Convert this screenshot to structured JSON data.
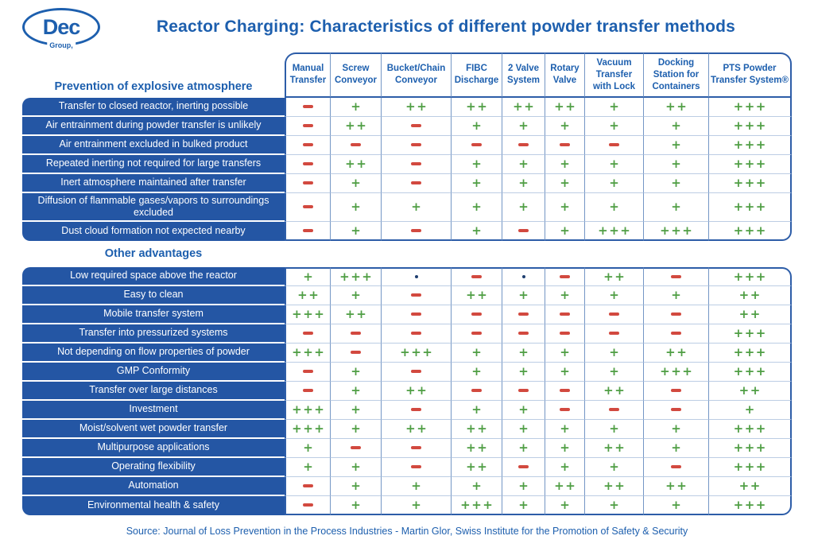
{
  "header": {
    "logo_text": "Dec",
    "logo_subtext": "Group,",
    "title": "Reactor Charging: Characteristics of different powder transfer methods"
  },
  "chart_data": {
    "type": "table",
    "title": "Reactor Charging: Characteristics of different powder transfer methods",
    "rating_scale": [
      "-",
      ".",
      "+",
      "++",
      "+++"
    ],
    "columns": [
      "Manual Transfer",
      "Screw Conveyor",
      "Bucket/Chain Conveyor",
      "FIBC Discharge",
      "2 Valve System",
      "Rotary Valve",
      "Vacuum Transfer with Lock",
      "Docking Station for Containers",
      "PTS Powder Transfer System®"
    ],
    "sections": [
      {
        "name": "Prevention of explosive atmosphere",
        "rows": [
          {
            "label": "Transfer to closed reactor, inerting possible",
            "values": [
              "-",
              "+",
              "++",
              "++",
              "++",
              "++",
              "+",
              "++",
              "+++"
            ]
          },
          {
            "label": "Air entrainment during powder transfer is unlikely",
            "values": [
              "-",
              "++",
              "-",
              "+",
              "+",
              "+",
              "+",
              "+",
              "+++"
            ]
          },
          {
            "label": "Air entrainment excluded in bulked product",
            "values": [
              "-",
              "-",
              "-",
              "-",
              "-",
              "-",
              "-",
              "+",
              "+++"
            ]
          },
          {
            "label": "Repeated inerting not required for large transfers",
            "values": [
              "-",
              "++",
              "-",
              "+",
              "+",
              "+",
              "+",
              "+",
              "+++"
            ]
          },
          {
            "label": "Inert atmosphere maintained after transfer",
            "values": [
              "-",
              "+",
              "-",
              "+",
              "+",
              "+",
              "+",
              "+",
              "+++"
            ]
          },
          {
            "label": "Diffusion of flammable gases/vapors to surroundings excluded",
            "values": [
              "-",
              "+",
              "+",
              "+",
              "+",
              "+",
              "+",
              "+",
              "+++"
            ]
          },
          {
            "label": "Dust cloud formation not expected nearby",
            "values": [
              "-",
              "+",
              "-",
              "+",
              "-",
              "+",
              "+++",
              "+++",
              "+++"
            ]
          }
        ]
      },
      {
        "name": "Other advantages",
        "rows": [
          {
            "label": "Low required space above the reactor",
            "values": [
              "+",
              "+++",
              ".",
              "-",
              ".",
              "-",
              "++",
              "-",
              "+++"
            ]
          },
          {
            "label": "Easy to clean",
            "values": [
              "++",
              "+",
              "-",
              "++",
              "+",
              "+",
              "+",
              "+",
              "++"
            ]
          },
          {
            "label": "Mobile transfer system",
            "values": [
              "+++",
              "++",
              "-",
              "-",
              "-",
              "-",
              "-",
              "-",
              "++"
            ]
          },
          {
            "label": "Transfer into pressurized systems",
            "values": [
              "-",
              "-",
              "-",
              "-",
              "-",
              "-",
              "-",
              "-",
              "+++"
            ]
          },
          {
            "label": "Not depending on flow properties of powder",
            "values": [
              "+++",
              "-",
              "+++",
              "+",
              "+",
              "+",
              "+",
              "++",
              "+++"
            ]
          },
          {
            "label": "GMP Conformity",
            "values": [
              "-",
              "+",
              "-",
              "+",
              "+",
              "+",
              "+",
              "+++",
              "+++"
            ]
          },
          {
            "label": "Transfer over large distances",
            "values": [
              "-",
              "+",
              "++",
              "-",
              "-",
              "-",
              "++",
              "-",
              "++"
            ]
          },
          {
            "label": "Investment",
            "values": [
              "+++",
              "+",
              "-",
              "+",
              "+",
              "-",
              "-",
              "-",
              "+"
            ]
          },
          {
            "label": "Moist/solvent wet powder transfer",
            "values": [
              "+++",
              "+",
              "++",
              "++",
              "+",
              "+",
              "+",
              "+",
              "+++"
            ]
          },
          {
            "label": "Multipurpose applications",
            "values": [
              "+",
              "-",
              "-",
              "++",
              "+",
              "+",
              "++",
              "+",
              "+++"
            ]
          },
          {
            "label": "Operating flexibility",
            "values": [
              "+",
              "+",
              "-",
              "++",
              "-",
              "+",
              "+",
              "-",
              "+++"
            ]
          },
          {
            "label": "Automation",
            "values": [
              "-",
              "+",
              "+",
              "+",
              "+",
              "++",
              "++",
              "++",
              "++"
            ]
          },
          {
            "label": "Environmental health & safety",
            "values": [
              "-",
              "+",
              "+",
              "+++",
              "+",
              "+",
              "+",
              "+",
              "+++"
            ]
          }
        ]
      }
    ]
  },
  "footer": {
    "source": "Source: Journal of Loss Prevention in the Process Industries - Martin Glor, Swiss Institute for the Promotion of Safety & Security"
  },
  "colors": {
    "brand_blue": "#1d5fae",
    "row_blue": "#2456a4",
    "plus_green": "#4f9e44",
    "minus_red": "#d2493f"
  }
}
